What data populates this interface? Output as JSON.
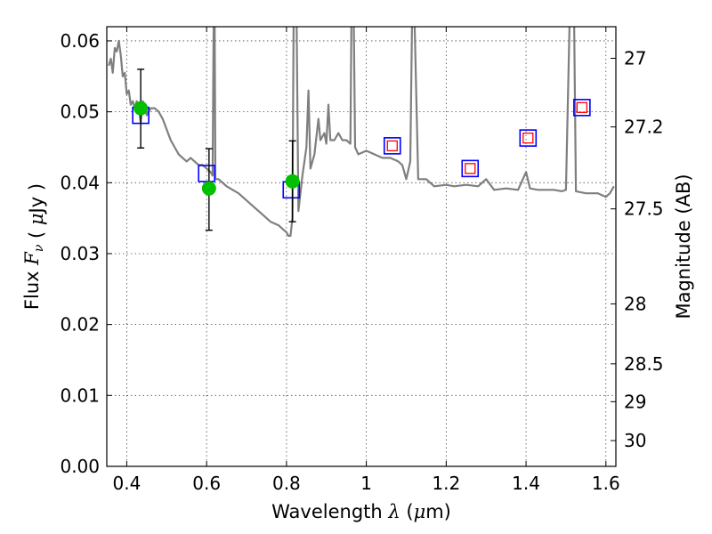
{
  "chart_data": {
    "type": "scatter",
    "title": "",
    "xlabel": "Wavelength  λ (μm)",
    "ylabel": "Flux  F_ν  ( μJy )",
    "y2label": "Magnitude (AB)",
    "xlim": [
      0.35,
      1.625
    ],
    "ylim": [
      0.0,
      0.062
    ],
    "grid": true,
    "x_ticks": [
      {
        "v": 0.4,
        "label": "0.4"
      },
      {
        "v": 0.6,
        "label": "0.6"
      },
      {
        "v": 0.8,
        "label": "0.8"
      },
      {
        "v": 1.0,
        "label": "1"
      },
      {
        "v": 1.2,
        "label": "1.2"
      },
      {
        "v": 1.4,
        "label": "1.4"
      },
      {
        "v": 1.6,
        "label": "1.6"
      }
    ],
    "y_ticks": [
      {
        "v": 0.0,
        "label": "0.00"
      },
      {
        "v": 0.01,
        "label": "0.01"
      },
      {
        "v": 0.02,
        "label": "0.02"
      },
      {
        "v": 0.03,
        "label": "0.03"
      },
      {
        "v": 0.04,
        "label": "0.04"
      },
      {
        "v": 0.05,
        "label": "0.05"
      },
      {
        "v": 0.06,
        "label": "0.06"
      }
    ],
    "y2_ticks": [
      {
        "mag": 27,
        "label": "27"
      },
      {
        "mag": 27.2,
        "label": "27.2"
      },
      {
        "mag": 27.5,
        "label": "27.5"
      },
      {
        "mag": 28,
        "label": "28"
      },
      {
        "mag": 28.5,
        "label": "28.5"
      },
      {
        "mag": 29,
        "label": "29"
      },
      {
        "mag": 30,
        "label": "30"
      }
    ],
    "colors": {
      "spectrum": "#7f7f7f",
      "model_box": "#0000ff",
      "inner_box": "#ff0000",
      "observed": "#00c000",
      "errorbar": "#000000"
    },
    "series": [
      {
        "role": "model_spectrum",
        "points": [
          [
            0.355,
            0.0565
          ],
          [
            0.36,
            0.0575
          ],
          [
            0.365,
            0.0555
          ],
          [
            0.37,
            0.059
          ],
          [
            0.375,
            0.0585
          ],
          [
            0.38,
            0.06
          ],
          [
            0.385,
            0.058
          ],
          [
            0.39,
            0.055
          ],
          [
            0.395,
            0.0555
          ],
          [
            0.4,
            0.0525
          ],
          [
            0.405,
            0.053
          ],
          [
            0.41,
            0.051
          ],
          [
            0.415,
            0.0515
          ],
          [
            0.42,
            0.0505
          ],
          [
            0.425,
            0.0515
          ],
          [
            0.43,
            0.0505
          ],
          [
            0.435,
            0.0485
          ],
          [
            0.44,
            0.0515
          ],
          [
            0.445,
            0.051
          ],
          [
            0.45,
            0.0495
          ],
          [
            0.455,
            0.05
          ],
          [
            0.46,
            0.0505
          ],
          [
            0.47,
            0.0505
          ],
          [
            0.48,
            0.05
          ],
          [
            0.49,
            0.049
          ],
          [
            0.5,
            0.0475
          ],
          [
            0.51,
            0.046
          ],
          [
            0.52,
            0.045
          ],
          [
            0.53,
            0.044
          ],
          [
            0.54,
            0.0435
          ],
          [
            0.55,
            0.043
          ],
          [
            0.56,
            0.0435
          ],
          [
            0.57,
            0.043
          ],
          [
            0.58,
            0.0425
          ],
          [
            0.59,
            0.0425
          ],
          [
            0.6,
            0.042
          ],
          [
            0.61,
            0.0415
          ],
          [
            0.615,
            0.041
          ],
          [
            0.618,
            0.065
          ],
          [
            0.62,
            0.065
          ],
          [
            0.622,
            0.0405
          ],
          [
            0.63,
            0.0405
          ],
          [
            0.65,
            0.0395
          ],
          [
            0.68,
            0.0385
          ],
          [
            0.7,
            0.0375
          ],
          [
            0.72,
            0.0365
          ],
          [
            0.74,
            0.0355
          ],
          [
            0.76,
            0.0345
          ],
          [
            0.78,
            0.034
          ],
          [
            0.79,
            0.0335
          ],
          [
            0.8,
            0.033
          ],
          [
            0.805,
            0.0325
          ],
          [
            0.81,
            0.0325
          ],
          [
            0.815,
            0.035
          ],
          [
            0.818,
            0.065
          ],
          [
            0.825,
            0.065
          ],
          [
            0.83,
            0.036
          ],
          [
            0.84,
            0.041
          ],
          [
            0.85,
            0.045
          ],
          [
            0.855,
            0.053
          ],
          [
            0.86,
            0.042
          ],
          [
            0.87,
            0.044
          ],
          [
            0.88,
            0.049
          ],
          [
            0.885,
            0.046
          ],
          [
            0.895,
            0.047
          ],
          [
            0.9,
            0.0455
          ],
          [
            0.905,
            0.051
          ],
          [
            0.91,
            0.046
          ],
          [
            0.92,
            0.046
          ],
          [
            0.93,
            0.047
          ],
          [
            0.94,
            0.046
          ],
          [
            0.95,
            0.046
          ],
          [
            0.96,
            0.0455
          ],
          [
            0.963,
            0.065
          ],
          [
            0.968,
            0.065
          ],
          [
            0.972,
            0.045
          ],
          [
            0.98,
            0.044
          ],
          [
            1.0,
            0.0445
          ],
          [
            1.02,
            0.044
          ],
          [
            1.04,
            0.0435
          ],
          [
            1.06,
            0.0435
          ],
          [
            1.08,
            0.043
          ],
          [
            1.09,
            0.0425
          ],
          [
            1.1,
            0.0405
          ],
          [
            1.11,
            0.043
          ],
          [
            1.115,
            0.065
          ],
          [
            1.12,
            0.065
          ],
          [
            1.13,
            0.0405
          ],
          [
            1.15,
            0.0405
          ],
          [
            1.17,
            0.0395
          ],
          [
            1.2,
            0.0397
          ],
          [
            1.22,
            0.0395
          ],
          [
            1.25,
            0.0397
          ],
          [
            1.28,
            0.0395
          ],
          [
            1.3,
            0.0405
          ],
          [
            1.32,
            0.039
          ],
          [
            1.35,
            0.0392
          ],
          [
            1.38,
            0.039
          ],
          [
            1.4,
            0.0415
          ],
          [
            1.41,
            0.0392
          ],
          [
            1.43,
            0.039
          ],
          [
            1.47,
            0.039
          ],
          [
            1.49,
            0.0388
          ],
          [
            1.5,
            0.039
          ],
          [
            1.51,
            0.065
          ],
          [
            1.52,
            0.065
          ],
          [
            1.525,
            0.0388
          ],
          [
            1.55,
            0.0385
          ],
          [
            1.58,
            0.0385
          ],
          [
            1.6,
            0.038
          ],
          [
            1.61,
            0.0385
          ],
          [
            1.62,
            0.0395
          ]
        ]
      },
      {
        "role": "model_photometry",
        "x": [
          0.435,
          0.6,
          0.812,
          1.065,
          1.26,
          1.405,
          1.54
        ],
        "y": [
          0.0495,
          0.0413,
          0.039,
          0.0452,
          0.042,
          0.0463,
          0.0506
        ]
      },
      {
        "role": "observed_photometry",
        "points": [
          {
            "x": 0.435,
            "y": 0.0505,
            "yerr_low": 0.0056,
            "yerr_high": 0.0055
          },
          {
            "x": 0.606,
            "y": 0.0392,
            "yerr_low": 0.0059,
            "yerr_high": 0.0056
          },
          {
            "x": 0.815,
            "y": 0.0402,
            "yerr_low": 0.0057,
            "yerr_high": 0.0057
          }
        ]
      }
    ]
  }
}
